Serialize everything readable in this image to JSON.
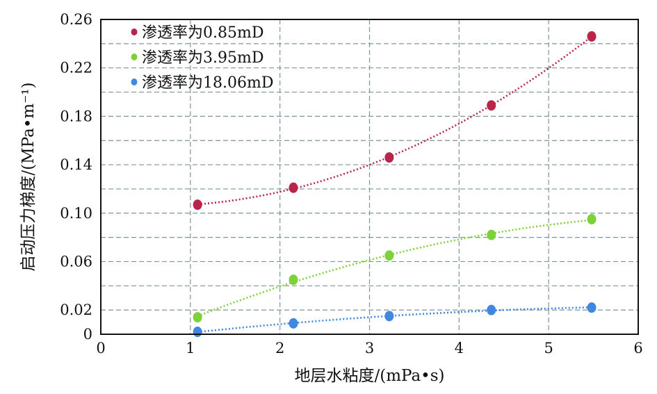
{
  "chart_data": {
    "type": "scatter",
    "xlabel": "地层水粘度/(mPa•s)",
    "ylabel": "启动压力梯度/(MPa•m⁻¹)",
    "xlim": [
      0,
      6
    ],
    "ylim": [
      0,
      0.26
    ],
    "x_ticks": [
      "0",
      "1",
      "2",
      "3",
      "4",
      "5",
      "6"
    ],
    "y_ticks": [
      "0",
      "0.02",
      "0.06",
      "0.10",
      "0.14",
      "0.18",
      "0.22",
      "0.26"
    ],
    "grid": true,
    "legend_position": "top-left",
    "series": [
      {
        "name": "渗透率为0.85mD",
        "color": "#b8244a",
        "x": [
          1.08,
          2.15,
          3.22,
          4.36,
          5.48
        ],
        "y": [
          0.107,
          0.121,
          0.146,
          0.189,
          0.246
        ]
      },
      {
        "name": "渗透率为3.95mD",
        "color": "#7ed13a",
        "x": [
          1.08,
          2.15,
          3.22,
          4.36,
          5.48
        ],
        "y": [
          0.014,
          0.045,
          0.065,
          0.082,
          0.095
        ]
      },
      {
        "name": "渗透率为18.06mD",
        "color": "#3f87e0",
        "x": [
          1.08,
          2.15,
          3.22,
          4.36,
          5.48
        ],
        "y": [
          0.002,
          0.009,
          0.015,
          0.02,
          0.022
        ]
      }
    ]
  }
}
